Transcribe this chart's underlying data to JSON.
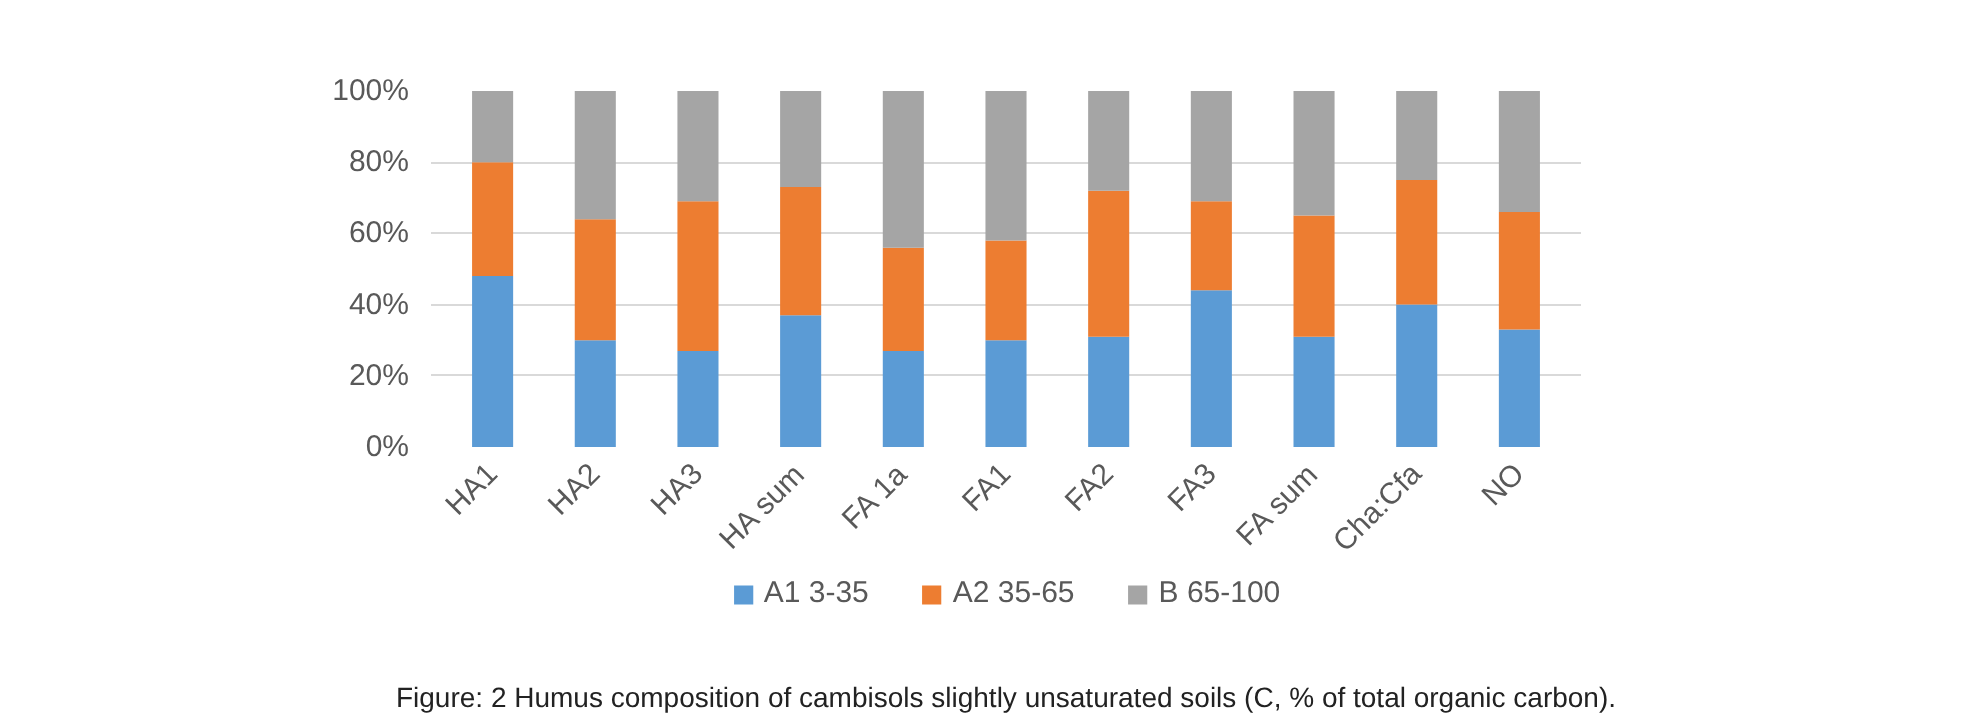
{
  "chart_data": {
    "type": "bar",
    "stacked": true,
    "categories": [
      "HA1",
      "HA2",
      "HA3",
      "HA sum",
      "FA 1a",
      "FA1",
      "FA2",
      "FA3",
      "FA sum",
      "Cha:Cfa",
      "NO"
    ],
    "series": [
      {
        "name": "A1 3-35",
        "color": "#5b9bd5",
        "values": [
          48,
          30,
          27,
          37,
          27,
          30,
          31,
          44,
          31,
          40,
          33
        ]
      },
      {
        "name": "A2 35-65",
        "color": "#ed7d31",
        "values": [
          32,
          34,
          42,
          36,
          29,
          28,
          41,
          25,
          34,
          35,
          33
        ]
      },
      {
        "name": "B 65-100",
        "color": "#a5a5a5",
        "values": [
          20,
          36,
          31,
          27,
          44,
          42,
          28,
          31,
          35,
          25,
          34
        ]
      }
    ],
    "ylim": [
      0,
      100
    ],
    "yticks": [
      {
        "value": 0,
        "label": "0%"
      },
      {
        "value": 20,
        "label": "20%"
      },
      {
        "value": 40,
        "label": "40%"
      },
      {
        "value": 60,
        "label": "60%"
      },
      {
        "value": 80,
        "label": "80%"
      },
      {
        "value": 100,
        "label": "100%"
      }
    ],
    "grid": "y",
    "legend": "bottom",
    "annotations": [
      "Figure: 2 Humus composition of cambisols slightly unsaturated soils (C, % of total organic carbon)."
    ]
  }
}
